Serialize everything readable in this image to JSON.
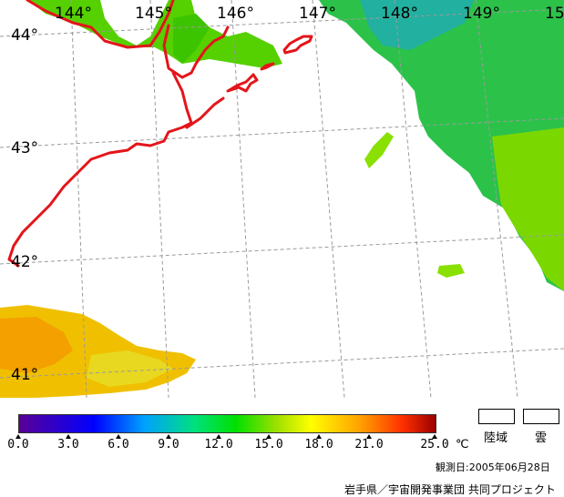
{
  "map": {
    "longitude_labels": [
      "144°",
      "145°",
      "146°",
      "147°",
      "148°",
      "149°",
      "15"
    ],
    "latitude_labels": [
      "44°",
      "43°",
      "42°",
      "41°"
    ],
    "colors": {
      "coastline": "#e3151b",
      "background": "#ffffff",
      "grid": "#9a9a9a"
    }
  },
  "legend": {
    "ticks": [
      "0.0",
      "3.0",
      "6.0",
      "9.0",
      "12.0",
      "15.0",
      "18.0",
      "21.0",
      "25.0"
    ],
    "unit": "℃",
    "land_label": "陸域",
    "cloud_label": "雲",
    "observation_date": "観測日:2005年06月28日",
    "credit": "岩手県／宇宙開発事業団 共同プロジェクト"
  }
}
